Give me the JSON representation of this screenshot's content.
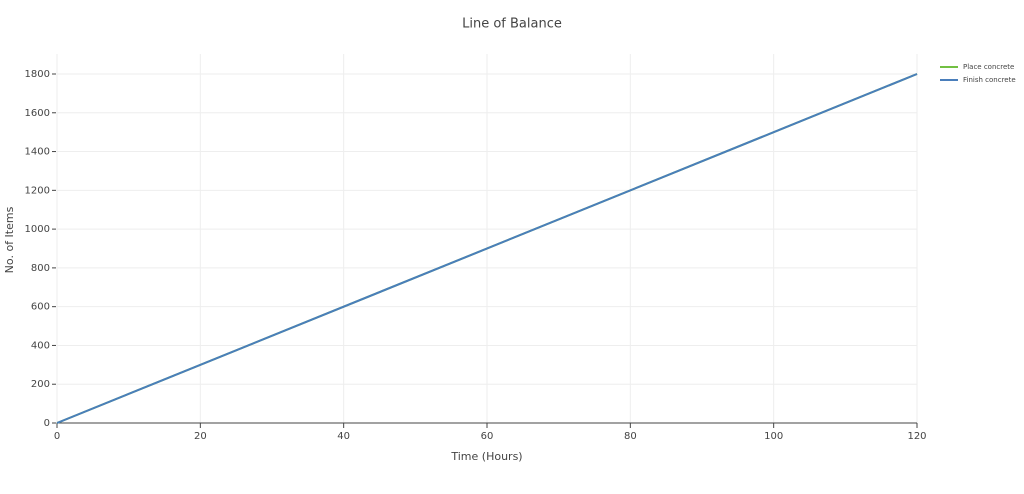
{
  "chart_data": {
    "type": "line",
    "title": "Line of Balance",
    "x_label": "Time (Hours)",
    "y_label": "No. of Items",
    "x": [
      0,
      120
    ],
    "series": [
      {
        "name": "Place concrete",
        "color": "#72c043",
        "values": [
          0,
          1800
        ]
      },
      {
        "name": "Finish concrete",
        "color": "#4a7ebb",
        "values": [
          0,
          1800
        ]
      }
    ],
    "xlim": [
      0,
      120
    ],
    "xticks": [
      0,
      20,
      40,
      60,
      80,
      100,
      120
    ],
    "ylim": [
      0,
      1800
    ],
    "yticks": [
      0,
      200,
      400,
      600,
      800,
      1000,
      1200,
      1400,
      1600,
      1800
    ],
    "grid": true,
    "legend": "top-right"
  }
}
